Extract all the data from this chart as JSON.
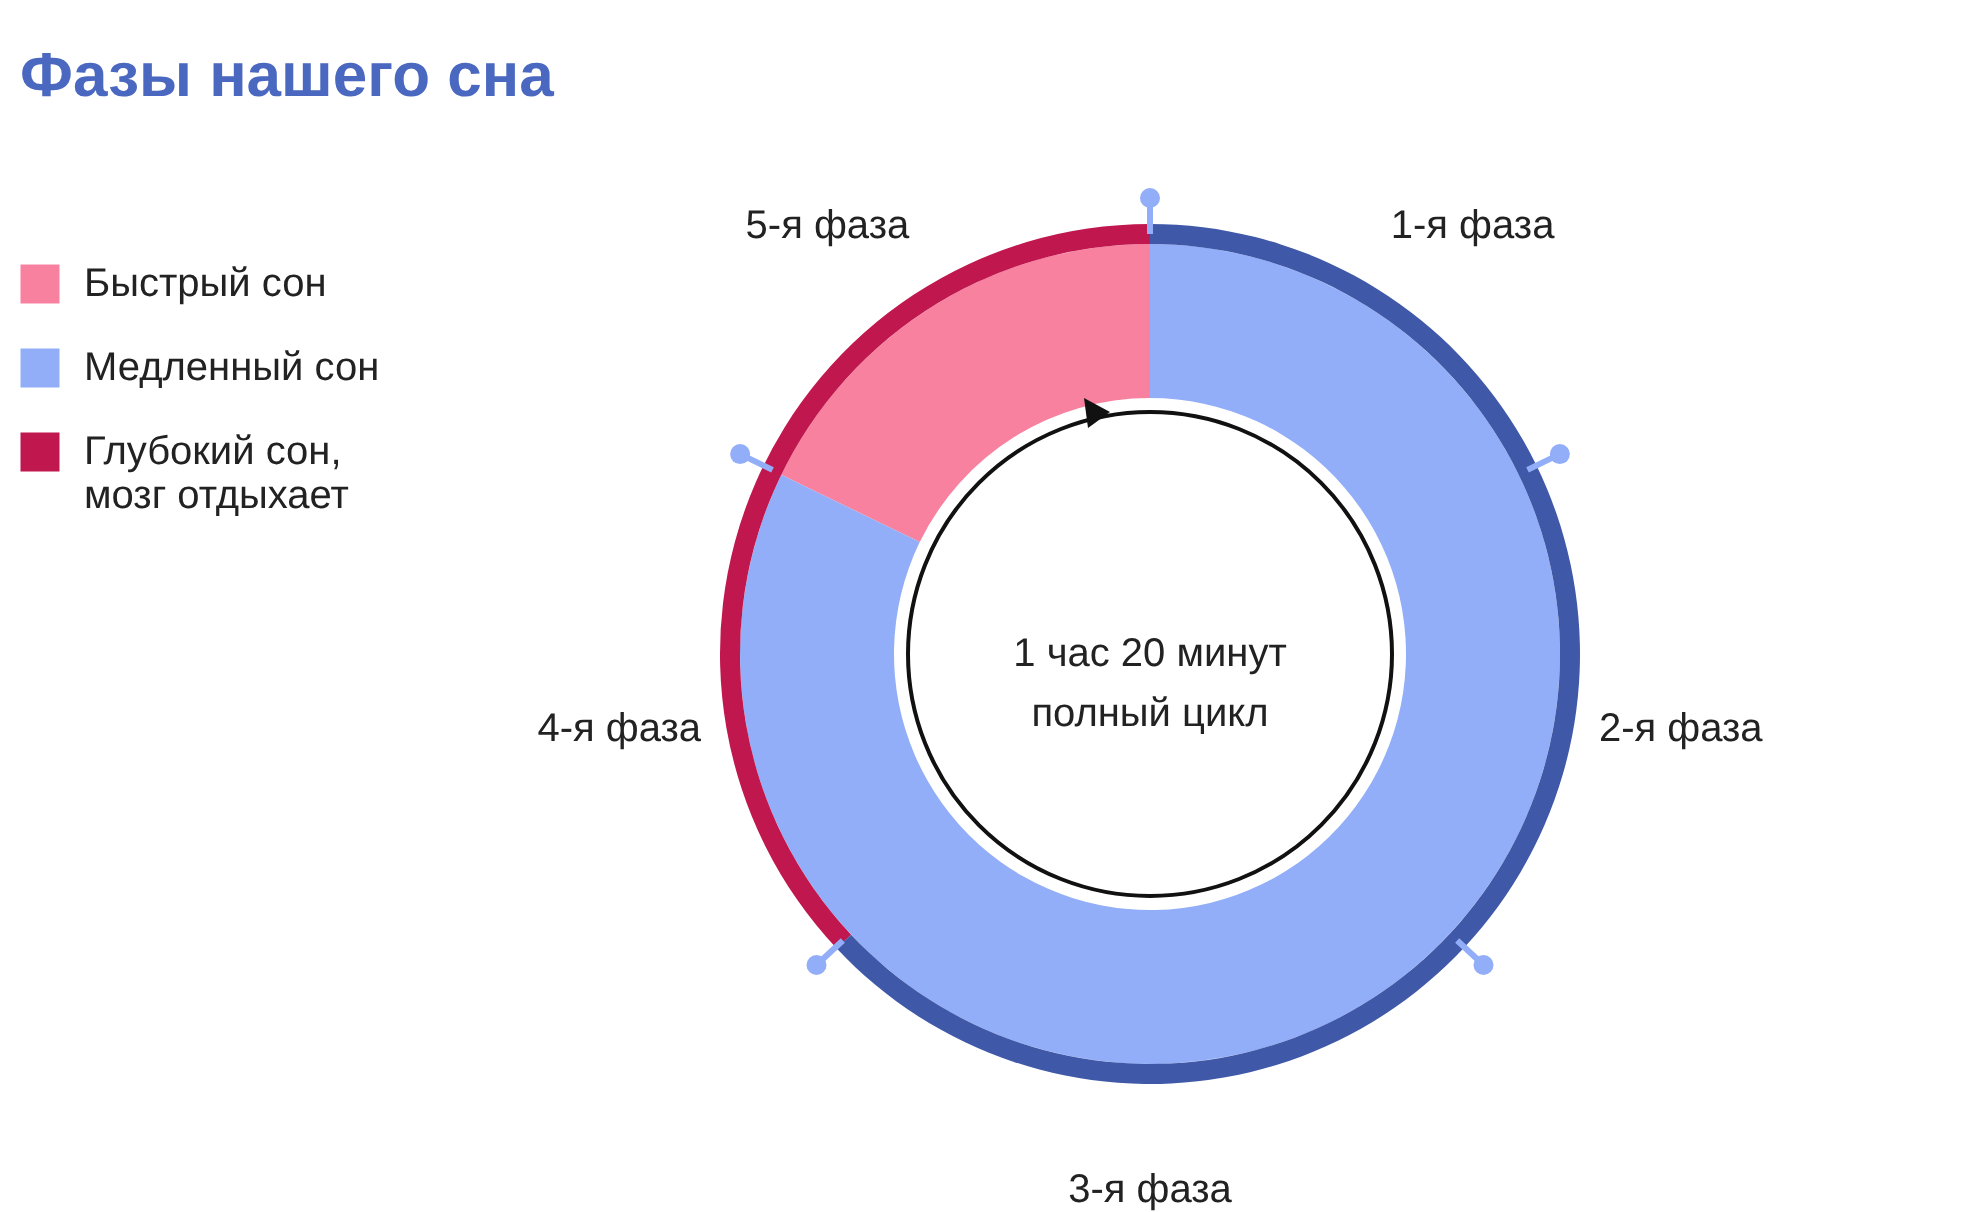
{
  "chart_data": {
    "type": "donut",
    "title": "Фазы нашего сна",
    "categories": [
      "Быстрый сон",
      "Медленный сон",
      "Глубокий сон,\nмозг отдыхает",
      null
    ],
    "colors": [
      "#f8819f",
      "#93aef8",
      "#c0174f",
      "#3f58a8"
    ],
    "series": [
      {
        "values": [
          17.8,
          82.2,
          null,
          null
        ]
      },
      {
        "values": [
          null,
          null,
          37,
          63
        ]
      }
    ],
    "annotations": [
      "1-я фаза",
      "2-я фаза",
      "3-я фаза",
      "4-я фаза",
      "5-я фаза",
      "1 час 20 минут\nполный цикл"
    ],
    "legend": "left"
  }
}
